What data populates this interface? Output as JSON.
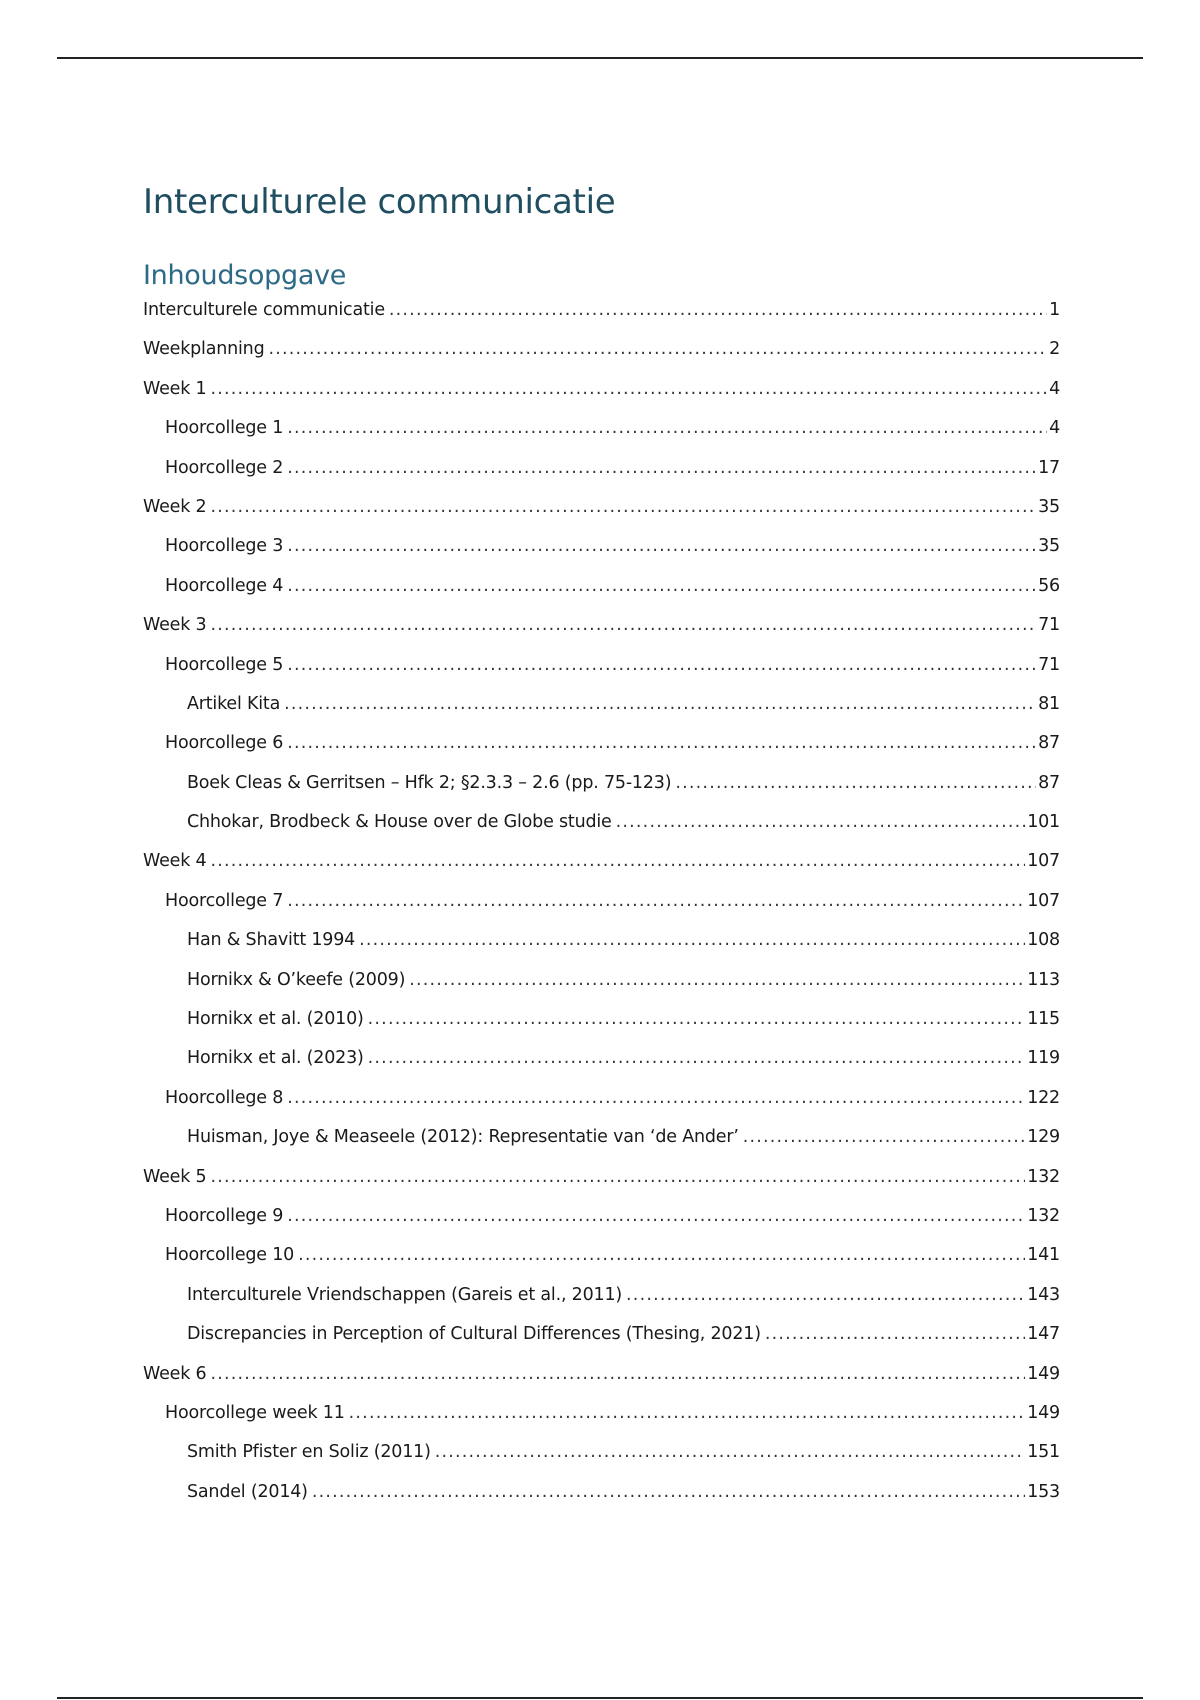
{
  "document": {
    "title": "Interculturele communicatie",
    "toc_heading": "Inhoudsopgave",
    "toc": [
      {
        "level": 1,
        "label": "Interculturele communicatie",
        "page": "1"
      },
      {
        "level": 1,
        "label": "Weekplanning",
        "page": "2"
      },
      {
        "level": 1,
        "label": "Week 1",
        "page": "4"
      },
      {
        "level": 2,
        "label": "Hoorcollege 1",
        "page": "4"
      },
      {
        "level": 2,
        "label": "Hoorcollege 2",
        "page": "17"
      },
      {
        "level": 1,
        "label": "Week 2",
        "page": "35"
      },
      {
        "level": 2,
        "label": "Hoorcollege 3",
        "page": "35"
      },
      {
        "level": 2,
        "label": "Hoorcollege 4",
        "page": "56"
      },
      {
        "level": 1,
        "label": "Week 3",
        "page": "71"
      },
      {
        "level": 2,
        "label": "Hoorcollege 5",
        "page": "71"
      },
      {
        "level": 3,
        "label": "Artikel Kita",
        "page": "81"
      },
      {
        "level": 2,
        "label": "Hoorcollege 6",
        "page": "87"
      },
      {
        "level": 3,
        "label": "Boek Cleas & Gerritsen – Hfk 2; §2.3.3 – 2.6 (pp. 75-123)",
        "page": "87"
      },
      {
        "level": 3,
        "label": "Chhokar, Brodbeck & House over de Globe studie",
        "page": "101"
      },
      {
        "level": 1,
        "label": "Week 4",
        "page": "107"
      },
      {
        "level": 2,
        "label": "Hoorcollege 7",
        "page": "107"
      },
      {
        "level": 3,
        "label": "Han & Shavitt 1994",
        "page": "108"
      },
      {
        "level": 3,
        "label": "Hornikx & O’keefe (2009)",
        "page": "113"
      },
      {
        "level": 3,
        "label": "Hornikx et al. (2010)",
        "page": "115"
      },
      {
        "level": 3,
        "label": "Hornikx et al. (2023)",
        "page": "119"
      },
      {
        "level": 2,
        "label": "Hoorcollege 8",
        "page": "122"
      },
      {
        "level": 3,
        "label": "Huisman, Joye & Measeele (2012): Representatie van ‘de Ander’",
        "page": "129"
      },
      {
        "level": 1,
        "label": "Week 5",
        "page": "132"
      },
      {
        "level": 2,
        "label": "Hoorcollege 9",
        "page": "132"
      },
      {
        "level": 2,
        "label": "Hoorcollege 10",
        "page": "141"
      },
      {
        "level": 3,
        "label": "Interculturele Vriendschappen (Gareis et al., 2011)",
        "page": "143"
      },
      {
        "level": 3,
        "label": "Discrepancies in Perception of Cultural Differences (Thesing, 2021)",
        "page": "147"
      },
      {
        "level": 1,
        "label": "Week 6",
        "page": "149"
      },
      {
        "level": 2,
        "label": "Hoorcollege week 11",
        "page": "149"
      },
      {
        "level": 3,
        "label": "Smith Pfister en Soliz (2011)",
        "page": "151"
      },
      {
        "level": 3,
        "label": "Sandel (2014)",
        "page": "153"
      }
    ]
  },
  "colors": {
    "title": "#1f4e61",
    "heading": "#2d6a86",
    "text": "#1a1a1a"
  }
}
